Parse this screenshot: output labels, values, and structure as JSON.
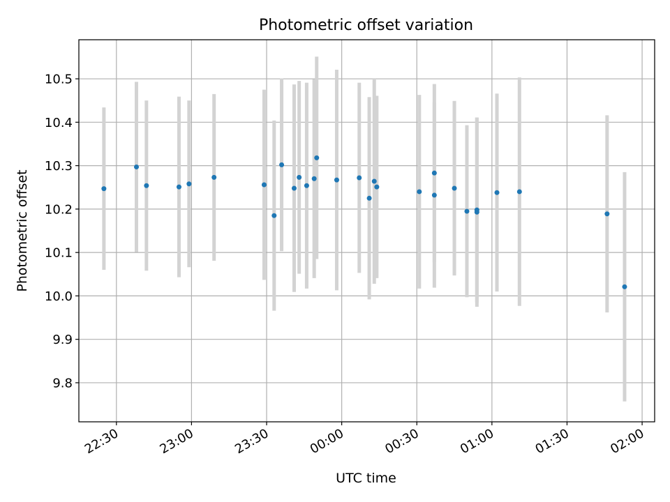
{
  "chart_data": {
    "type": "scatter",
    "title": "Photometric offset variation",
    "xlabel": "UTC time",
    "ylabel": "Photometric offset",
    "x_unit": "UTC hh:mm (times after midnight are 24:xx)",
    "xlim": [
      "22:15",
      "02:05"
    ],
    "ylim": [
      9.71,
      10.59
    ],
    "x_ticks": [
      "22:30",
      "23:00",
      "23:30",
      "00:00",
      "00:30",
      "01:00",
      "01:30",
      "02:00"
    ],
    "y_ticks": [
      9.8,
      9.9,
      10.0,
      10.1,
      10.2,
      10.3,
      10.4,
      10.5
    ],
    "y_tick_labels": [
      "9.8",
      "9.9",
      "10.0",
      "10.1",
      "10.2",
      "10.3",
      "10.4",
      "10.5"
    ],
    "grid": true,
    "colors": {
      "marker": "#1f77b4",
      "errorbar": "#d3d3d3",
      "grid": "#b0b0b0"
    },
    "points": [
      {
        "t": "22:25",
        "y": 10.247,
        "err": 0.187
      },
      {
        "t": "22:38",
        "y": 10.297,
        "err": 0.196
      },
      {
        "t": "22:42",
        "y": 10.254,
        "err": 0.196
      },
      {
        "t": "22:55",
        "y": 10.251,
        "err": 0.208
      },
      {
        "t": "22:59",
        "y": 10.258,
        "err": 0.192
      },
      {
        "t": "23:09",
        "y": 10.273,
        "err": 0.192
      },
      {
        "t": "23:29",
        "y": 10.256,
        "err": 0.219
      },
      {
        "t": "23:33",
        "y": 10.185,
        "err": 0.219
      },
      {
        "t": "23:36",
        "y": 10.302,
        "err": 0.199
      },
      {
        "t": "23:41",
        "y": 10.248,
        "err": 0.239
      },
      {
        "t": "23:43",
        "y": 10.273,
        "err": 0.222
      },
      {
        "t": "23:46",
        "y": 10.254,
        "err": 0.237
      },
      {
        "t": "23:49",
        "y": 10.27,
        "err": 0.229
      },
      {
        "t": "23:50",
        "y": 10.318,
        "err": 0.233
      },
      {
        "t": "23:58",
        "y": 10.267,
        "err": 0.254
      },
      {
        "t": "24:07",
        "y": 10.272,
        "err": 0.219
      },
      {
        "t": "24:11",
        "y": 10.225,
        "err": 0.233
      },
      {
        "t": "24:13",
        "y": 10.264,
        "err": 0.236
      },
      {
        "t": "24:14",
        "y": 10.251,
        "err": 0.21
      },
      {
        "t": "24:31",
        "y": 10.24,
        "err": 0.223
      },
      {
        "t": "24:37",
        "y": 10.232,
        "err": 0.213
      },
      {
        "t": "24:37",
        "y": 10.283,
        "err": 0.205
      },
      {
        "t": "24:45",
        "y": 10.248,
        "err": 0.201
      },
      {
        "t": "24:50",
        "y": 10.195,
        "err": 0.198
      },
      {
        "t": "24:54",
        "y": 10.198,
        "err": 0.213
      },
      {
        "t": "24:54",
        "y": 10.193,
        "err": 0.218
      },
      {
        "t": "25:02",
        "y": 10.238,
        "err": 0.228
      },
      {
        "t": "25:11",
        "y": 10.24,
        "err": 0.263
      },
      {
        "t": "25:46",
        "y": 10.189,
        "err": 0.227
      },
      {
        "t": "25:53",
        "y": 10.021,
        "err": 0.264
      }
    ]
  }
}
